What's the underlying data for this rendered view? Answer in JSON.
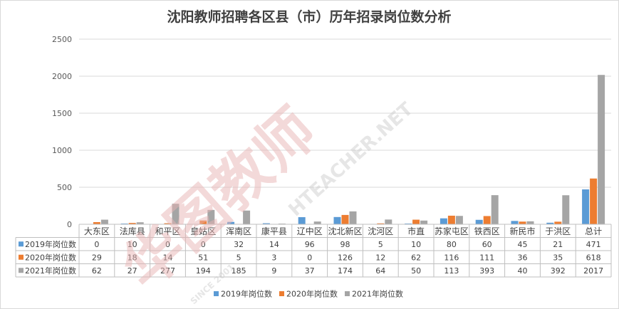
{
  "chart_data": {
    "type": "bar",
    "title": "沈阳教师招聘各区县（市）历年招录岗位数分析",
    "categories": [
      "大东区",
      "法库县",
      "和平区",
      "皇姑区",
      "浑南区",
      "康平县",
      "辽中区",
      "沈北新区",
      "沈河区",
      "市直",
      "苏家屯区",
      "铁西区",
      "新民市",
      "于洪区",
      "总计"
    ],
    "series": [
      {
        "name": "2019年岗位数",
        "color": "#5b9bd5",
        "values": [
          0,
          10,
          0,
          0,
          32,
          14,
          96,
          98,
          5,
          10,
          80,
          60,
          45,
          21,
          471
        ]
      },
      {
        "name": "2020年岗位数",
        "color": "#ed7d31",
        "values": [
          29,
          18,
          14,
          51,
          5,
          3,
          0,
          126,
          12,
          62,
          116,
          111,
          36,
          35,
          618
        ]
      },
      {
        "name": "2021年岗位数",
        "color": "#a5a5a5",
        "values": [
          62,
          27,
          277,
          194,
          185,
          9,
          37,
          174,
          64,
          50,
          113,
          393,
          40,
          392,
          2017
        ]
      }
    ],
    "ylim": [
      0,
      2500
    ],
    "yticks": [
      0,
      500,
      1000,
      1500,
      2000,
      2500
    ],
    "grid": true,
    "legend": "bottom",
    "data_table": true
  },
  "watermark": {
    "brand": "华图教师",
    "url": "HTEACHER.NET",
    "since": "SINCE 2001"
  }
}
